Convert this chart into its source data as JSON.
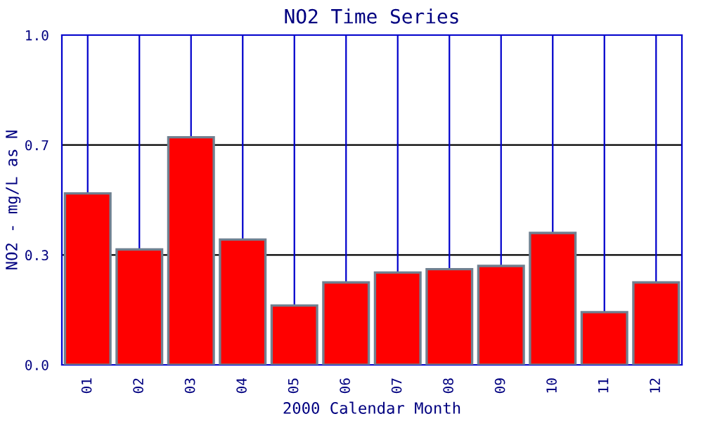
{
  "chart_data": {
    "type": "bar",
    "title": "NO2 Time Series",
    "xlabel": "2000 Calendar Month",
    "ylabel": "NO2 - mg/L as N",
    "categories": [
      "01",
      "02",
      "03",
      "04",
      "05",
      "06",
      "07",
      "08",
      "09",
      "10",
      "11",
      "12"
    ],
    "series": [
      {
        "color": "#ff0000",
        "values": [
          0.52,
          0.35,
          0.69,
          0.38,
          0.18,
          0.25,
          0.28,
          0.29,
          0.3,
          0.4,
          0.16,
          0.25
        ]
      }
    ],
    "ylim": [
      0,
      1.0
    ],
    "yticks": [
      {
        "value": 0,
        "label": "0.0"
      },
      {
        "value": 0.3333,
        "label": "0.3"
      },
      {
        "value": 0.6667,
        "label": "0.7"
      },
      {
        "value": 1.0,
        "label": "1.0"
      }
    ],
    "grid": true,
    "legend": false
  }
}
